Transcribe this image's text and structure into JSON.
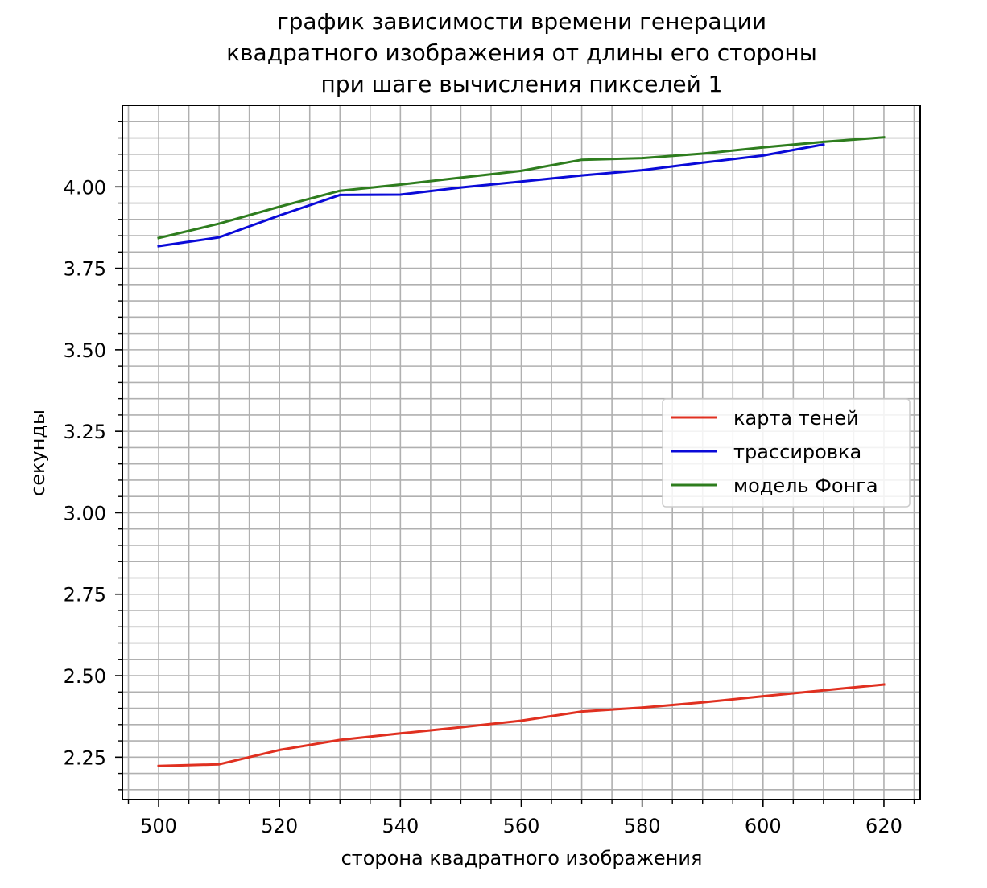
{
  "chart_data": {
    "type": "line",
    "title": [
      "график зависимости времени генерации",
      "квадратного изображения от длины его стороны",
      "при шаге вычисления пикселей 1"
    ],
    "xlabel": "сторона квадратного изображения",
    "ylabel": "секунды",
    "xlim": [
      494.0,
      626.0
    ],
    "ylim": [
      2.12,
      4.25
    ],
    "xticks": [
      500,
      520,
      540,
      560,
      580,
      600,
      620
    ],
    "xtick_labels": [
      "500",
      "520",
      "540",
      "560",
      "580",
      "600",
      "620"
    ],
    "yticks": [
      2.25,
      2.5,
      2.75,
      3.0,
      3.25,
      3.5,
      3.75,
      4.0
    ],
    "ytick_labels": [
      "2.25",
      "2.50",
      "2.75",
      "3.00",
      "3.25",
      "3.50",
      "3.75",
      "4.00"
    ],
    "grid": true,
    "minor_grid": true,
    "legend_position": "center-right",
    "series": [
      {
        "name": "карта теней",
        "color": "#e03020",
        "x": [
          500,
          510,
          520,
          530,
          540,
          550,
          560,
          570,
          580,
          590,
          600,
          610,
          620
        ],
        "y": [
          2.223,
          2.228,
          2.272,
          2.303,
          2.323,
          2.342,
          2.362,
          2.39,
          2.402,
          2.418,
          2.437,
          2.455,
          2.473
        ]
      },
      {
        "name": "трассировка",
        "color": "#0a0ad8",
        "x": [
          500,
          510,
          520,
          530,
          540,
          550,
          560,
          570,
          580,
          590,
          600,
          610
        ],
        "y": [
          3.818,
          3.845,
          3.912,
          3.975,
          3.976,
          3.998,
          4.016,
          4.035,
          4.051,
          4.074,
          4.096,
          4.13
        ]
      },
      {
        "name": "модель Фонга",
        "color": "#2e7d1e",
        "x": [
          500,
          510,
          520,
          530,
          540,
          550,
          560,
          570,
          580,
          590,
          600,
          610,
          620
        ],
        "y": [
          3.843,
          3.887,
          3.939,
          3.988,
          4.007,
          4.028,
          4.049,
          4.083,
          4.088,
          4.102,
          4.121,
          4.138,
          4.152
        ]
      }
    ]
  }
}
